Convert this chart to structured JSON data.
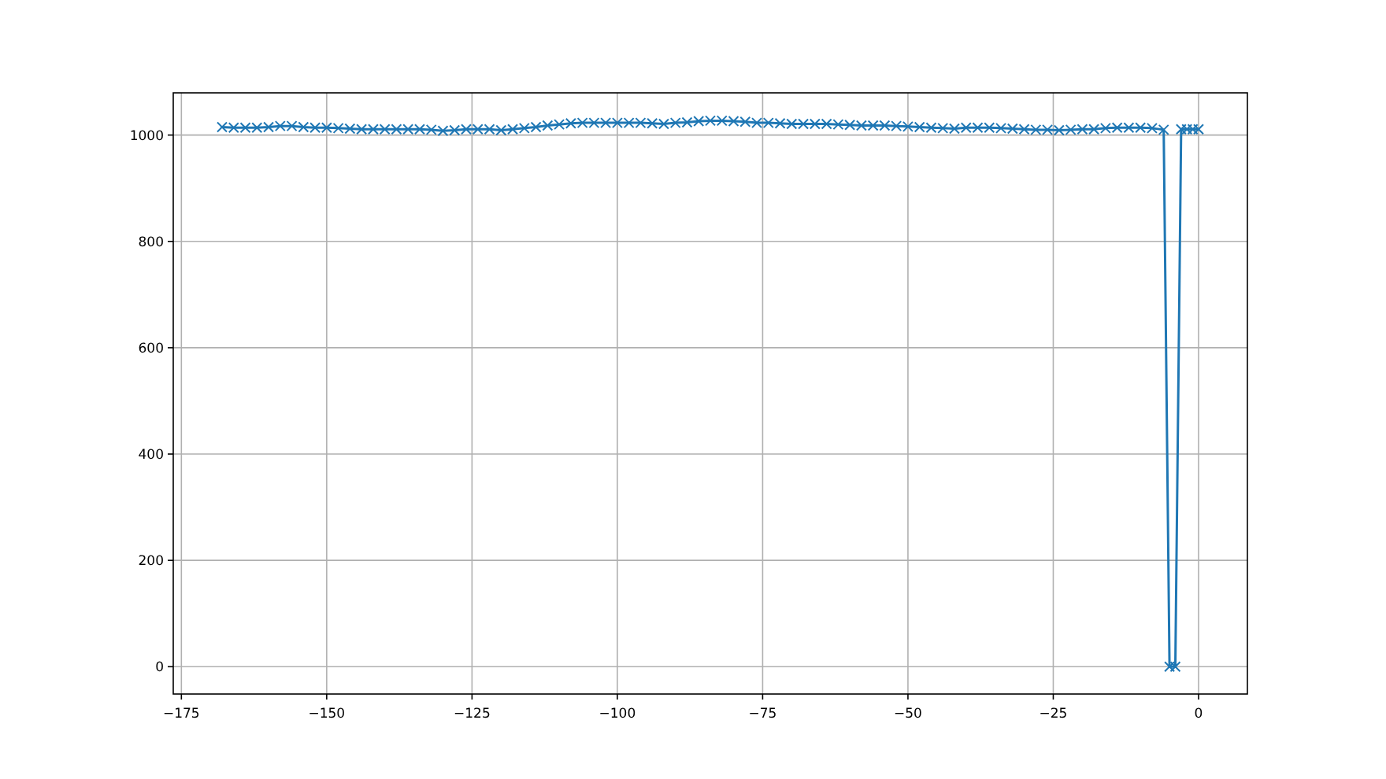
{
  "chart_data": {
    "type": "line",
    "x": [
      -168,
      -166,
      -164,
      -162,
      -160,
      -158,
      -156,
      -154,
      -152,
      -150,
      -148,
      -146,
      -144,
      -142,
      -140,
      -138,
      -136,
      -134,
      -132,
      -130,
      -128,
      -126,
      -124,
      -122,
      -120,
      -118,
      -116,
      -114,
      -112,
      -110,
      -108,
      -106,
      -104,
      -102,
      -100,
      -98,
      -96,
      -94,
      -92,
      -90,
      -88,
      -86,
      -84,
      -82,
      -80,
      -78,
      -76,
      -74,
      -72,
      -70,
      -68,
      -66,
      -64,
      -62,
      -60,
      -58,
      -56,
      -54,
      -52,
      -50,
      -48,
      -46,
      -44,
      -42,
      -40,
      -38,
      -36,
      -34,
      -32,
      -30,
      -28,
      -26,
      -24,
      -22,
      -20,
      -18,
      -16,
      -14,
      -12,
      -10,
      -8,
      -6,
      -5,
      -4,
      -3,
      -2,
      -1,
      0
    ],
    "series": [
      {
        "color": "#1f77b4",
        "values": [
          1015,
          1014,
          1014,
          1014,
          1015,
          1017,
          1017,
          1015,
          1014,
          1014,
          1013,
          1012,
          1011,
          1011,
          1011,
          1011,
          1011,
          1011,
          1010,
          1008,
          1009,
          1011,
          1011,
          1011,
          1009,
          1011,
          1013,
          1015,
          1018,
          1020,
          1022,
          1023,
          1023,
          1023,
          1023,
          1023,
          1023,
          1022,
          1021,
          1023,
          1024,
          1026,
          1027,
          1027,
          1026,
          1025,
          1023,
          1023,
          1022,
          1021,
          1021,
          1021,
          1021,
          1020,
          1019,
          1018,
          1018,
          1018,
          1017,
          1016,
          1015,
          1014,
          1013,
          1012,
          1014,
          1014,
          1014,
          1013,
          1012,
          1011,
          1010,
          1010,
          1009,
          1010,
          1011,
          1011,
          1013,
          1014,
          1014,
          1014,
          1013,
          1010,
          0,
          0,
          1011,
          1011,
          1011,
          1011
        ]
      }
    ],
    "xlim": [
      -176.4,
      8.4
    ],
    "ylim": [
      -51.4,
      1079.4
    ],
    "xticks": [
      {
        "value": -175,
        "label": "−175"
      },
      {
        "value": -150,
        "label": "−150"
      },
      {
        "value": -125,
        "label": "−125"
      },
      {
        "value": -100,
        "label": "−100"
      },
      {
        "value": -75,
        "label": "−75"
      },
      {
        "value": -50,
        "label": "−50"
      },
      {
        "value": -25,
        "label": "−25"
      },
      0
    ],
    "yticks": [
      0,
      200,
      400,
      600,
      800,
      1000
    ],
    "grid": true,
    "marker": "cross",
    "line_style": "solid"
  }
}
